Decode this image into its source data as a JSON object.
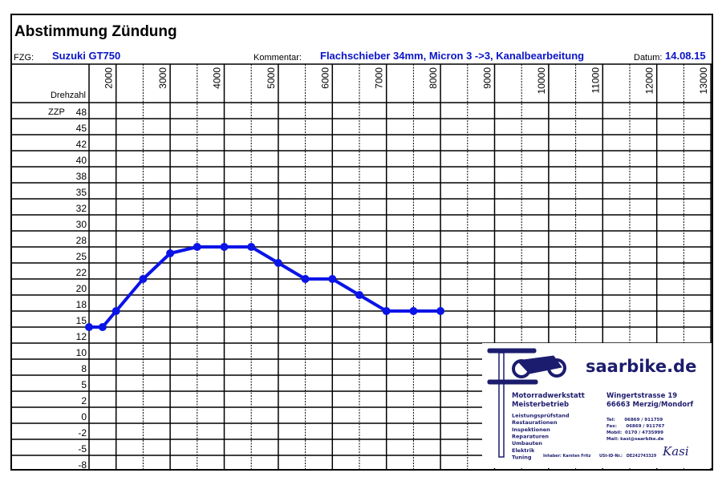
{
  "header": {
    "title": "Abstimmung Zündung",
    "fzg_label": "FZG:",
    "fzg_value": "Suzuki GT750",
    "kommentar_label": "Kommentar:",
    "kommentar_value": "Flachschieber 34mm, Micron 3 ->3, Kanalbearbeitung",
    "datum_label": "Datum:",
    "datum_value": "14.08.15"
  },
  "logo": {
    "brand": "saarbike.de",
    "services": [
      "Motorradwerkstatt",
      "Meisterbetrieb",
      "Leistungsprüfstand",
      "Restaurationen",
      "Inspektionen",
      "Reparaturen",
      "Umbauten",
      "Elektrik",
      "Tuning"
    ],
    "address": [
      "Wingertstrasse 19",
      "66663 Merzig/Mondorf"
    ],
    "contact": [
      "Tel:      06869 / 911759",
      "Fax:      06869 / 911767",
      "Mobil:  0170 / 4735999",
      "Mail: kasi@saarbike.de"
    ],
    "owner": "Inhaber: Karsten Fritz",
    "ust": "USt-ID-Nr.:   DE242743329",
    "signature": "Kasi",
    "color": "#1c1c6e"
  },
  "chart_data": {
    "type": "line",
    "xlabel": "Drehzahl",
    "ylabel": "ZZP",
    "x_tick_labels": [
      "2000",
      "3000",
      "4000",
      "5000",
      "6000",
      "7000",
      "8000",
      "9000",
      "10000",
      "11000",
      "12000",
      "13000"
    ],
    "y_tick_labels": [
      "48",
      "45",
      "42",
      "40",
      "38",
      "35",
      "32",
      "30",
      "28",
      "25",
      "22",
      "20",
      "18",
      "15",
      "12",
      "10",
      "8",
      "5",
      "2",
      "0",
      "-2",
      "-5",
      "-8"
    ],
    "xlim": [
      1500,
      13000
    ],
    "ylim": [
      -8,
      47.5
    ],
    "grid": true,
    "line_color": "#0a14e6",
    "series": [
      {
        "x": [
          1500,
          1750,
          2000,
          2500,
          3000,
          3500,
          4000,
          4500,
          5000,
          5500,
          6000,
          6500,
          7000,
          7500,
          8000
        ],
        "y": [
          15,
          15,
          17.5,
          22.5,
          26.5,
          27.5,
          27.5,
          27.5,
          25,
          22.5,
          22.5,
          20,
          17.5,
          17.5,
          17.5
        ]
      }
    ]
  }
}
